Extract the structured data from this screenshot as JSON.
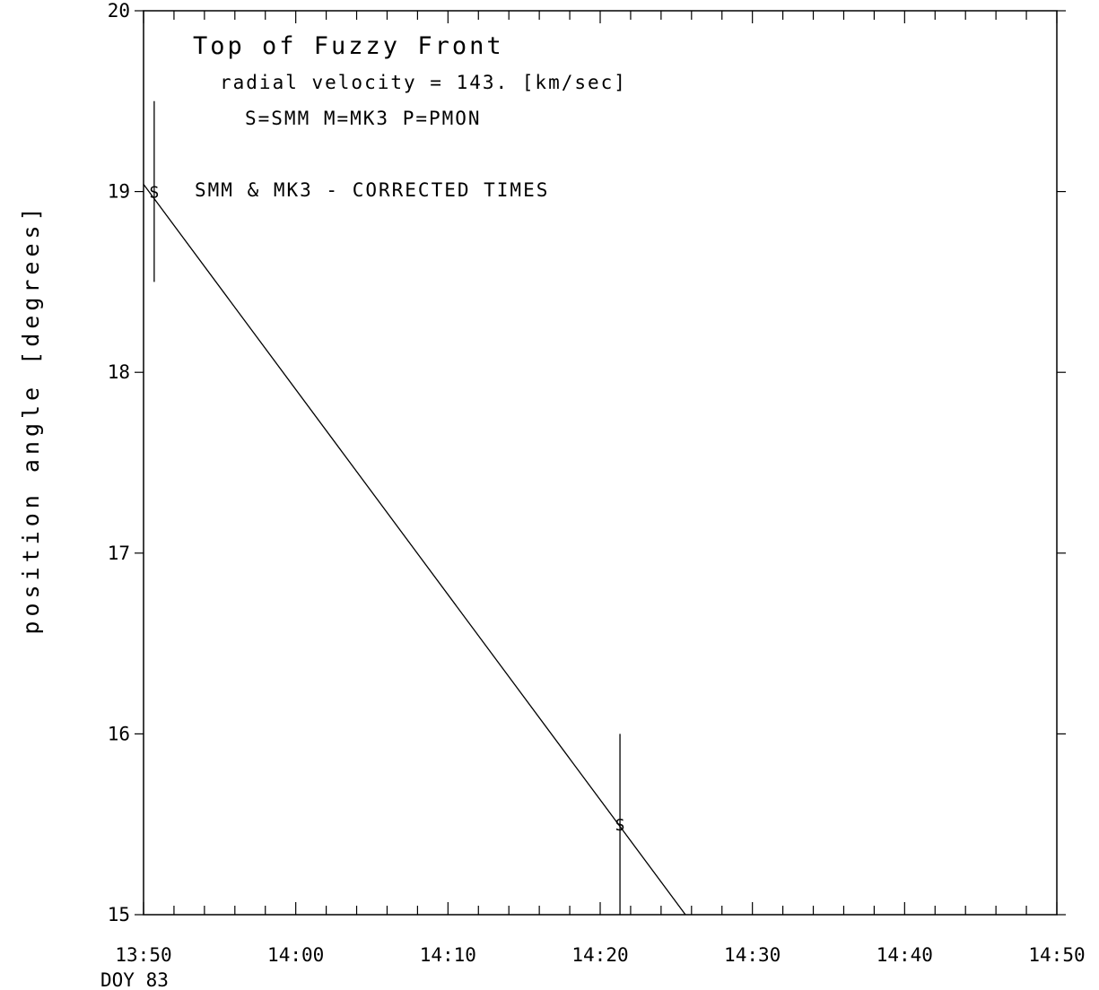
{
  "chart_data": {
    "type": "scatter",
    "title": "Top of Fuzzy Front",
    "subtitle": "radial velocity =  143. [km/sec]",
    "legend_text": "S=SMM  M=MK3  P=PMON",
    "annotation": "SMM & MK3 - CORRECTED TIMES",
    "ylabel": "position angle [degrees]",
    "xlabel": "",
    "x_date_label": "DOY 83",
    "xlim": [
      "13:50",
      "14:50"
    ],
    "ylim": [
      15,
      20
    ],
    "x_ticks": [
      "13:50",
      "14:00",
      "14:10",
      "14:20",
      "14:30",
      "14:40",
      "14:50"
    ],
    "y_ticks": [
      "15",
      "16",
      "17",
      "18",
      "19",
      "20"
    ],
    "series": [
      {
        "marker": "S",
        "x": [
          "13:50.7",
          "14:21.3"
        ],
        "y": [
          19.0,
          15.5
        ],
        "yerr": [
          0.5,
          0.5
        ]
      }
    ],
    "fit_line": {
      "x": [
        "13:50",
        "14:25.6"
      ],
      "y": [
        19.04,
        15.0
      ]
    },
    "grid": false
  }
}
